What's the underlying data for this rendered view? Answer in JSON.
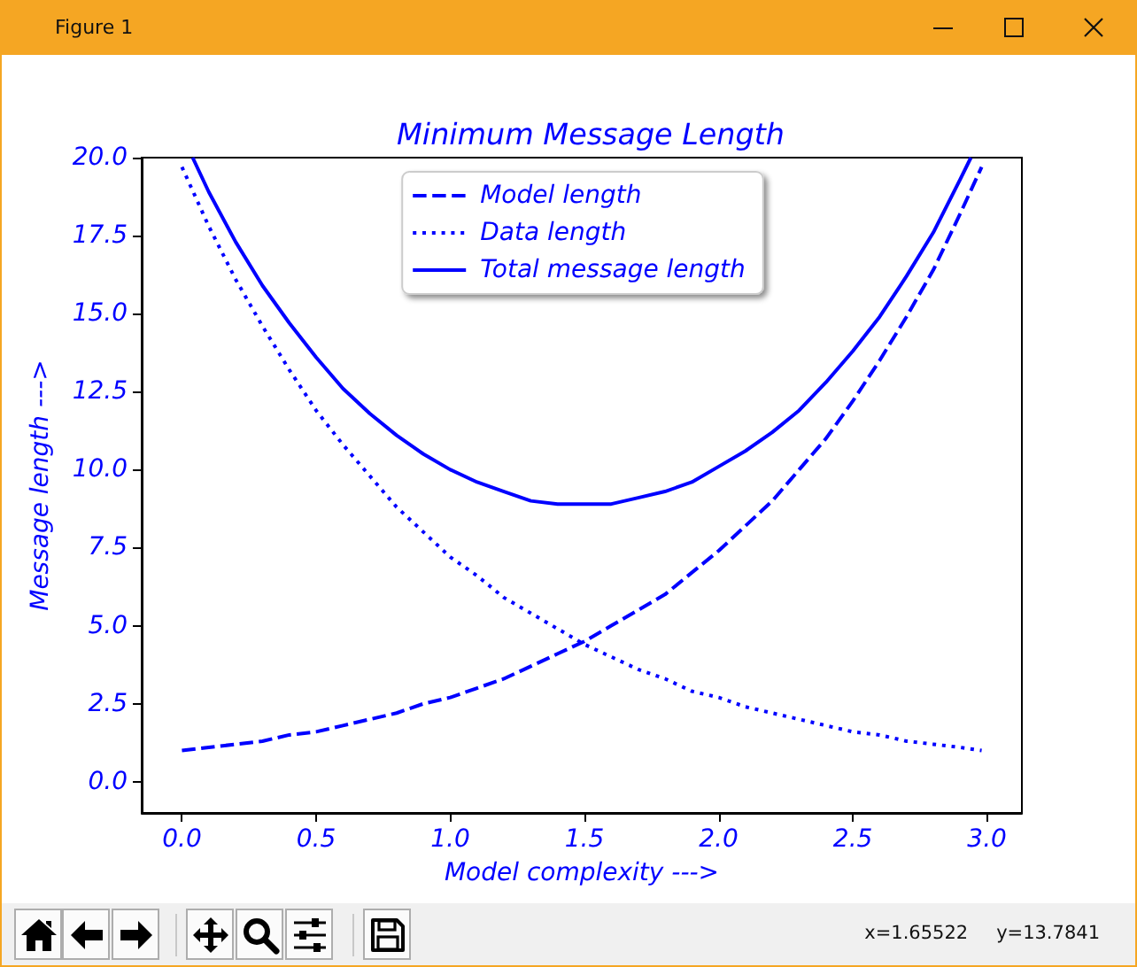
{
  "chart_data": {
    "type": "line",
    "title": "Minimum Message Length",
    "xlabel": "Model complexity --->",
    "ylabel": "Message length --->",
    "annotations": [
      "Figure 1",
      "x=1.65522",
      "y=13.7841"
    ],
    "x": [
      0,
      0.1,
      0.2,
      0.3,
      0.4,
      0.5,
      0.6,
      0.7,
      0.8,
      0.9,
      1.0,
      1.1,
      1.2,
      1.3,
      1.4,
      1.5,
      1.6,
      1.7,
      1.8,
      1.9,
      2.0,
      2.1,
      2.2,
      2.3,
      2.4,
      2.5,
      2.6,
      2.7,
      2.8,
      2.9,
      2.98
    ],
    "series": [
      {
        "name": "Model length",
        "color": "#0000ff",
        "line_style": "dashed",
        "values": [
          1.0,
          1.1,
          1.2,
          1.3,
          1.5,
          1.6,
          1.8,
          2.0,
          2.2,
          2.5,
          2.7,
          3.0,
          3.3,
          3.7,
          4.1,
          4.5,
          5.0,
          5.5,
          6.0,
          6.7,
          7.4,
          8.2,
          9.0,
          10.0,
          11.0,
          12.2,
          13.5,
          14.9,
          16.4,
          18.2,
          19.7
        ]
      },
      {
        "name": "Data length",
        "color": "#0000ff",
        "line_style": "dotted",
        "values": [
          19.7,
          17.8,
          16.1,
          14.6,
          13.2,
          11.9,
          10.8,
          9.8,
          8.8,
          8.0,
          7.2,
          6.6,
          5.9,
          5.4,
          4.9,
          4.4,
          4.0,
          3.6,
          3.3,
          2.9,
          2.7,
          2.4,
          2.2,
          2.0,
          1.8,
          1.6,
          1.5,
          1.3,
          1.2,
          1.1,
          1.0
        ]
      },
      {
        "name": "Total message length",
        "color": "#0000ff",
        "line_style": "solid",
        "x": [
          0.04,
          0.1,
          0.2,
          0.3,
          0.4,
          0.5,
          0.6,
          0.7,
          0.8,
          0.9,
          1.0,
          1.1,
          1.2,
          1.3,
          1.4,
          1.5,
          1.6,
          1.7,
          1.8,
          1.9,
          2.0,
          2.1,
          2.2,
          2.3,
          2.4,
          2.5,
          2.6,
          2.7,
          2.8,
          2.9,
          2.94
        ],
        "values": [
          20.0,
          18.9,
          17.3,
          15.9,
          14.7,
          13.6,
          12.6,
          11.8,
          11.1,
          10.5,
          10.0,
          9.6,
          9.3,
          9.0,
          8.9,
          8.9,
          8.9,
          9.1,
          9.3,
          9.6,
          10.1,
          10.6,
          11.2,
          11.9,
          12.8,
          13.8,
          14.9,
          16.2,
          17.6,
          19.3,
          20.0
        ]
      }
    ],
    "xlim": [
      -0.15,
      3.13
    ],
    "ylim": [
      -1,
      20
    ],
    "xticks": [
      {
        "value": 0,
        "label": "0.0"
      },
      0.5,
      {
        "value": 1,
        "label": "1.0"
      },
      1.5,
      {
        "value": 2,
        "label": "2.0"
      },
      2.5,
      {
        "value": 3,
        "label": "3.0"
      }
    ],
    "yticks": [
      {
        "value": 0,
        "label": "0.0"
      },
      2.5,
      {
        "value": 5,
        "label": "5.0"
      },
      7.5,
      {
        "value": 10,
        "label": "10.0"
      },
      12.5,
      {
        "value": 15,
        "label": "15.0"
      },
      17.5,
      {
        "value": 20,
        "label": "20.0"
      }
    ],
    "grid": false,
    "legend": "top",
    "marker": "none"
  }
}
